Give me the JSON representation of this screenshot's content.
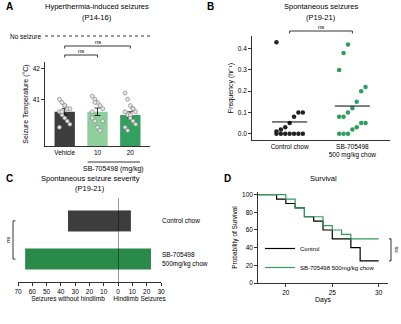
{
  "chart_data": [
    {
      "panel": "A",
      "type": "bar",
      "title": "Hyperthermia-induced seizures",
      "subtitle": "(P14-16)",
      "x_label": "SB-705498 (mg/kg)",
      "y_label": "Seizure Temperature (°C)",
      "categories": [
        "Vehicle",
        "10",
        "20"
      ],
      "values": [
        40.6,
        40.6,
        40.5
      ],
      "errors": [
        0.1,
        0.12,
        0.1
      ],
      "colors": [
        "#3d3d3d",
        "#8fcf9c",
        "#33a05f"
      ],
      "marker": "circle",
      "points": [
        [
          41.0,
          40.9,
          40.8,
          40.7,
          40.7,
          40.6,
          40.5,
          40.4,
          40.3,
          40.2,
          40.1,
          40.6,
          40.8
        ],
        [
          41.1,
          41.0,
          40.9,
          40.8,
          40.7,
          40.4,
          40.3,
          40.1,
          40.0,
          40.3,
          40.6,
          40.9
        ],
        [
          41.2,
          41.0,
          40.8,
          40.7,
          40.6,
          40.6,
          40.5,
          40.4,
          40.3,
          40.2,
          40.1,
          40.0,
          40.5,
          40.7
        ]
      ],
      "ylim": [
        39.5,
        42.2
      ],
      "yticks": [
        41,
        42
      ],
      "reference_label": "No seizure",
      "comparisons": [
        {
          "groups": [
            "Vehicle",
            "20"
          ],
          "label": "ns"
        },
        {
          "groups": [
            "Vehicle",
            "10"
          ],
          "label": "ns"
        }
      ]
    },
    {
      "panel": "B",
      "type": "scatter",
      "title": "Spontaneous seizures",
      "subtitle": "(P19-21)",
      "y_label": "Frequency (hr⁻¹)",
      "categories": [
        "Control chow",
        "SB-705498\n500 mg/kg chow"
      ],
      "colors": [
        "#222222",
        "#2e9e5b"
      ],
      "marker": "circle",
      "points": [
        [
          0,
          0,
          0,
          0,
          0,
          0,
          0,
          0.01,
          0.02,
          0.03,
          0.05,
          0.08,
          0.1,
          0.1,
          0.43
        ],
        [
          0,
          0,
          0,
          0.02,
          0.03,
          0.05,
          0.05,
          0.08,
          0.08,
          0.1,
          0.12,
          0.15,
          0.2,
          0.22,
          0.3,
          0.38,
          0.42
        ]
      ],
      "means": [
        0.055,
        0.13
      ],
      "ylim": [
        -0.03,
        0.46
      ],
      "yticks": [
        {
          "value": 0,
          "label": "0.0"
        },
        {
          "value": 0.1,
          "label": "0.1"
        },
        {
          "value": 0.2,
          "label": "0.2"
        },
        {
          "value": 0.3,
          "label": "0.3"
        },
        {
          "value": 0.4,
          "label": "0.4"
        }
      ],
      "comparisons": [
        {
          "groups": [
            "Control chow",
            "SB-705498\n500 mg/kg chow"
          ],
          "label": "ns"
        }
      ]
    },
    {
      "panel": "C",
      "type": "bar",
      "orientation": "horizontal",
      "title": "Spontaneous seizure severity",
      "subtitle": "(P19-21)",
      "categories": [
        "Control chow",
        "SB-705498\n500mg/kg chow"
      ],
      "colors": [
        "#3d3d3d",
        "#2a8a4a"
      ],
      "series": [
        {
          "name": "Seizures without hindlimb",
          "values": [
            35,
            65
          ],
          "xlim": [
            70,
            0
          ],
          "xticks": [
            70,
            60,
            50,
            40,
            30,
            20,
            10,
            0
          ]
        },
        {
          "name": "Hindlimb Seizures",
          "values": [
            9,
            23
          ],
          "xlim": [
            0,
            30
          ],
          "xticks": [
            10,
            20,
            30
          ]
        }
      ],
      "comparisons": [
        {
          "groups": [
            "Control chow",
            "SB-705498\n500mg/kg chow"
          ],
          "label": "ns"
        }
      ]
    },
    {
      "panel": "D",
      "type": "line",
      "line_style": "step",
      "title": "Survival",
      "x_label": "Days",
      "y_label": "Probability of Survival",
      "xlim": [
        17,
        31
      ],
      "xticks": [
        20,
        25,
        30
      ],
      "ylim": [
        0,
        103
      ],
      "yticks": [
        0,
        20,
        40,
        60,
        80,
        100
      ],
      "legend": "lower left",
      "series": [
        {
          "name": "Control",
          "color": "#000000",
          "x": [
            17,
            19,
            20,
            21,
            22,
            23,
            24,
            25,
            27,
            28,
            30
          ],
          "values": [
            100,
            95,
            90,
            85,
            75,
            70,
            60,
            50,
            40,
            25,
            25
          ]
        },
        {
          "name": "SB-705498 500mg/kg chow",
          "color": "#2e9e5b",
          "x": [
            17,
            20,
            21,
            22,
            24,
            25,
            26,
            27,
            30
          ],
          "values": [
            100,
            95,
            85,
            75,
            65,
            60,
            55,
            50,
            50
          ]
        }
      ],
      "comparisons": [
        {
          "groups": [
            "Control",
            "SB-705498 500mg/kg chow"
          ],
          "label": "ns"
        }
      ]
    }
  ]
}
